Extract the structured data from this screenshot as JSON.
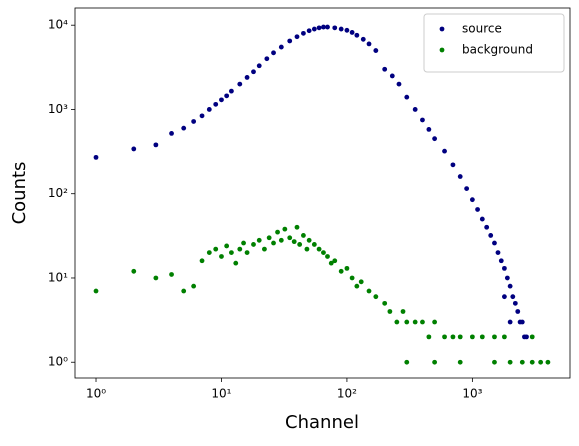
{
  "chart_data": {
    "type": "scatter",
    "xlabel": "Channel",
    "ylabel": "Counts",
    "xscale": "log",
    "yscale": "log",
    "xlim": [
      0.68,
      6000
    ],
    "ylim": [
      0.65,
      16000
    ],
    "xticks": [
      {
        "value": 1,
        "label": "10⁰"
      },
      {
        "value": 10,
        "label": "10¹"
      },
      {
        "value": 100,
        "label": "10²"
      },
      {
        "value": 1000,
        "label": "10³"
      }
    ],
    "yticks": [
      {
        "value": 1,
        "label": "10⁰"
      },
      {
        "value": 10,
        "label": "10¹"
      },
      {
        "value": 100,
        "label": "10²"
      },
      {
        "value": 1000,
        "label": "10³"
      },
      {
        "value": 10000,
        "label": "10⁴"
      }
    ],
    "legend": "upper right",
    "series": [
      {
        "name": "source",
        "color": "#000080",
        "x": [
          1,
          2,
          3,
          4,
          5,
          6,
          7,
          8,
          9,
          10,
          11,
          12,
          14,
          16,
          18,
          20,
          23,
          26,
          30,
          35,
          40,
          45,
          50,
          55,
          60,
          65,
          70,
          80,
          90,
          100,
          110,
          120,
          135,
          150,
          170,
          200,
          230,
          260,
          300,
          350,
          400,
          450,
          500,
          600,
          700,
          800,
          900,
          1000,
          1100,
          1200,
          1300,
          1400,
          1500,
          1600,
          1700,
          1800,
          1900,
          2000,
          2100,
          2200,
          2300,
          2400,
          2500,
          2600,
          2700,
          2000,
          1800
        ],
        "values": [
          270,
          340,
          380,
          520,
          600,
          720,
          840,
          1000,
          1150,
          1300,
          1450,
          1650,
          2000,
          2400,
          2800,
          3300,
          4000,
          4700,
          5500,
          6500,
          7300,
          8000,
          8600,
          9000,
          9300,
          9500,
          9500,
          9300,
          9000,
          8700,
          8200,
          7600,
          6800,
          6000,
          5000,
          3000,
          2500,
          2000,
          1400,
          1000,
          750,
          580,
          450,
          320,
          220,
          160,
          115,
          85,
          65,
          50,
          40,
          32,
          26,
          20,
          16,
          13,
          10,
          8,
          6,
          5,
          4,
          3,
          3,
          2,
          2,
          3,
          6
        ]
      },
      {
        "name": "background",
        "color": "#008000",
        "x": [
          1,
          2,
          3,
          4,
          5,
          6,
          7,
          8,
          9,
          10,
          11,
          12,
          13,
          14,
          15,
          16,
          18,
          20,
          22,
          24,
          26,
          28,
          30,
          32,
          35,
          38,
          40,
          42,
          45,
          48,
          50,
          55,
          60,
          65,
          70,
          75,
          80,
          90,
          100,
          110,
          120,
          130,
          150,
          170,
          200,
          220,
          250,
          280,
          300,
          350,
          400,
          450,
          500,
          600,
          700,
          800,
          1000,
          1200,
          1500,
          1800,
          2000,
          2500,
          3000,
          3500,
          4000,
          300,
          500,
          800,
          1500,
          3000
        ],
        "values": [
          7,
          12,
          10,
          11,
          7,
          8,
          16,
          20,
          22,
          18,
          24,
          20,
          15,
          22,
          26,
          20,
          25,
          28,
          22,
          30,
          26,
          35,
          28,
          38,
          30,
          27,
          40,
          25,
          32,
          22,
          28,
          25,
          22,
          20,
          18,
          15,
          16,
          12,
          13,
          10,
          8,
          9,
          7,
          6,
          5,
          4,
          3,
          4,
          3,
          3,
          3,
          2,
          3,
          2,
          2,
          2,
          2,
          2,
          2,
          2,
          1,
          1,
          1,
          1,
          1,
          1,
          1,
          1,
          1,
          2
        ]
      }
    ]
  }
}
